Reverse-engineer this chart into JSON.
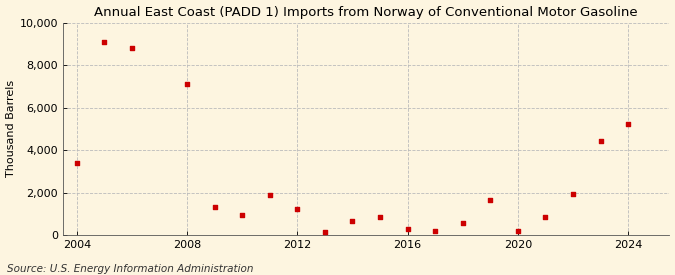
{
  "title": "Annual East Coast (PADD 1) Imports from Norway of Conventional Motor Gasoline",
  "ylabel": "Thousand Barrels",
  "source": "Source: U.S. Energy Information Administration",
  "background_color": "#fdf5e0",
  "marker_color": "#cc0000",
  "years": [
    2004,
    2005,
    2006,
    2008,
    2009,
    2010,
    2011,
    2012,
    2013,
    2014,
    2015,
    2016,
    2017,
    2018,
    2019,
    2020,
    2021,
    2022,
    2023,
    2024
  ],
  "values": [
    3400,
    9100,
    8800,
    7100,
    1350,
    950,
    1900,
    1250,
    150,
    650,
    850,
    300,
    200,
    600,
    1650,
    200,
    850,
    1950,
    4450,
    5250
  ],
  "xlim": [
    2003.5,
    2025.5
  ],
  "ylim": [
    0,
    10000
  ],
  "yticks": [
    0,
    2000,
    4000,
    6000,
    8000,
    10000
  ],
  "xticks": [
    2004,
    2008,
    2012,
    2016,
    2020,
    2024
  ],
  "grid_color": "#bbbbbb",
  "title_fontsize": 9.5,
  "label_fontsize": 8,
  "tick_fontsize": 8,
  "source_fontsize": 7.5
}
